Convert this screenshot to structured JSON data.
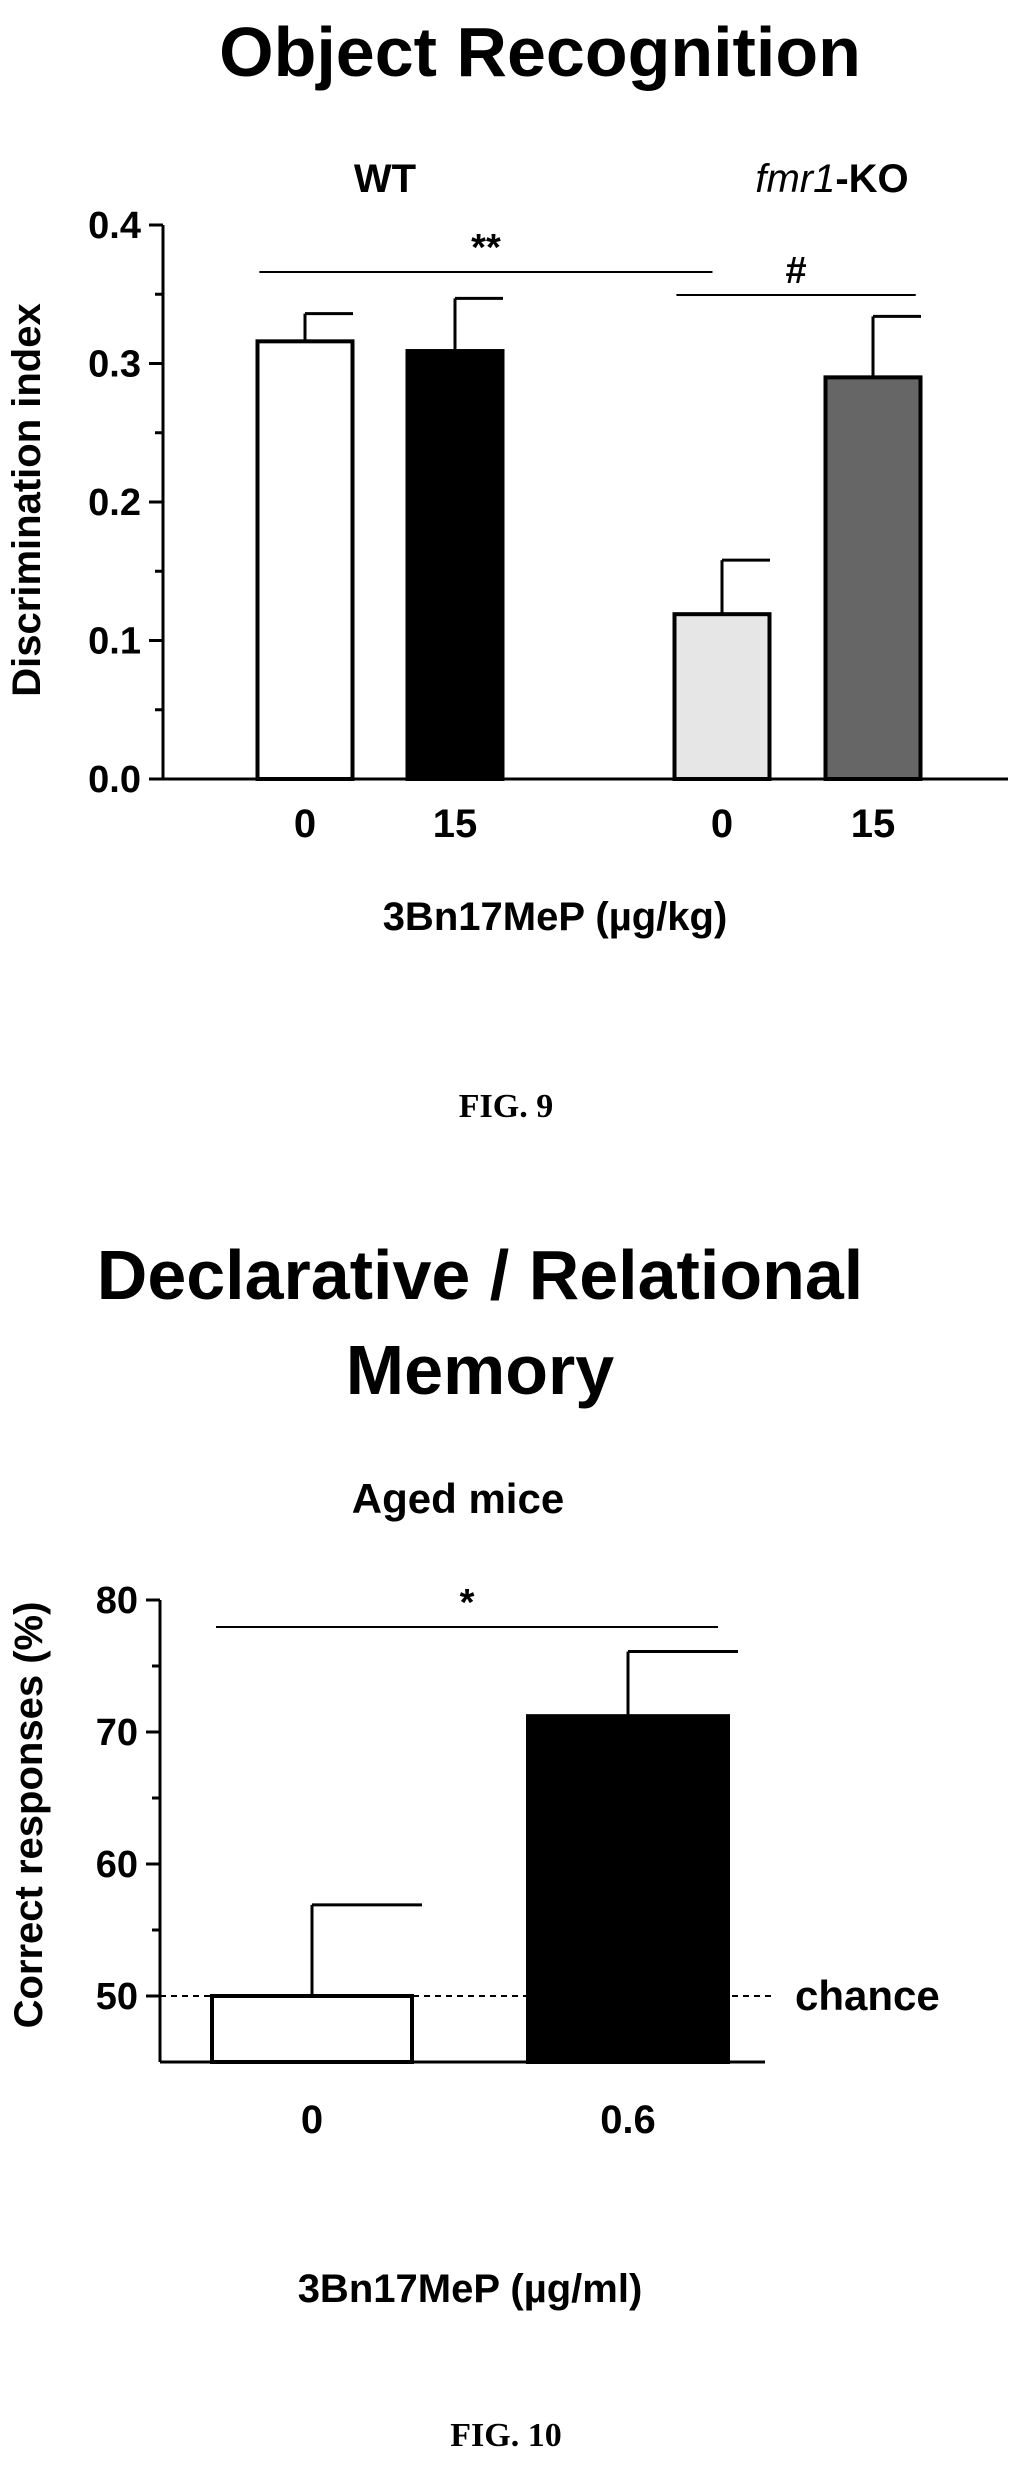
{
  "chart_data": [
    {
      "type": "bar",
      "title": "Object Recognition",
      "group_labels": {
        "left": "WT",
        "right_italic": "fmr1",
        "right_rest": "-KO"
      },
      "ylabel": "Discrimination index",
      "xlabel": "3Bn17MeP (µg/kg)",
      "ylim": [
        0,
        0.4
      ],
      "yticks": [
        "0.0",
        "0.1",
        "0.2",
        "0.3",
        "0.4"
      ],
      "categories": [
        "0",
        "15",
        "0",
        "15"
      ],
      "values": [
        0.316,
        0.309,
        0.119,
        0.29
      ],
      "errors": [
        0.02,
        0.038,
        0.039,
        0.044
      ],
      "colors": [
        "#ffffff",
        "#000000",
        "#e6e6e6",
        "#666666"
      ],
      "significance": [
        {
          "label": "**",
          "from": 0,
          "to": 2
        },
        {
          "label": "#",
          "from": 2,
          "to": 3
        }
      ],
      "caption": "FIG. 9"
    },
    {
      "type": "bar",
      "title_lines": [
        "Declarative / Relational",
        "Memory"
      ],
      "subtitle": "Aged mice",
      "ylabel": "Correct responses (%)",
      "xlabel": "3Bn17MeP (µg/ml)",
      "ylim": [
        45,
        80
      ],
      "yticks": [
        "50",
        "60",
        "70",
        "80"
      ],
      "categories": [
        "0",
        "0.6"
      ],
      "values": [
        50,
        71.2
      ],
      "errors": [
        6.9,
        4.9
      ],
      "colors": [
        "#ffffff",
        "#000000"
      ],
      "reference_line": {
        "value": 50,
        "label": "chance"
      },
      "significance": [
        {
          "label": "*",
          "from": 0,
          "to": 1
        }
      ],
      "caption": "FIG. 10"
    }
  ]
}
